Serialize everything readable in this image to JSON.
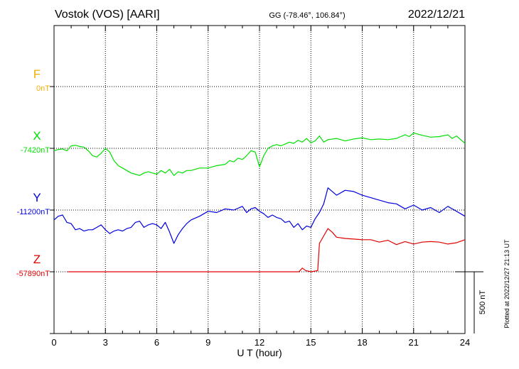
{
  "header": {
    "station": "Vostok (VOS)  [AARI]",
    "coords": "GG (-78.46°, 106.84°)",
    "date": "2022/12/21"
  },
  "side_note": "Plotted at 2022/12/27 21:13 UT",
  "scale_bar_label": "500 nT",
  "chart_data": {
    "type": "line",
    "title": "",
    "xlabel": "U T (hour)",
    "ylabel": "",
    "xlim": [
      0,
      24
    ],
    "x_ticks": [
      "0",
      "3",
      "6",
      "9",
      "12",
      "15",
      "18",
      "21",
      "24"
    ],
    "grid": true,
    "scale_bar_nT": 500,
    "panel_height_nT": 500,
    "series": [
      {
        "name": "F",
        "baseline_label": "0nT",
        "color": "#f2b000",
        "x": [],
        "y": []
      },
      {
        "name": "X",
        "baseline_label": "-7420nT",
        "color": "#00e000",
        "x": [
          0,
          0.25,
          0.5,
          0.75,
          1.0,
          1.25,
          1.5,
          1.75,
          2.0,
          2.25,
          2.5,
          2.75,
          3.0,
          3.25,
          3.5,
          3.75,
          4.0,
          4.25,
          4.5,
          4.75,
          5.0,
          5.25,
          5.5,
          5.75,
          6.0,
          6.25,
          6.5,
          6.75,
          7.0,
          7.25,
          7.5,
          7.75,
          8.0,
          8.5,
          9.0,
          9.5,
          10.0,
          10.25,
          10.5,
          10.75,
          11.0,
          11.25,
          11.5,
          11.75,
          12.0,
          12.25,
          12.5,
          12.75,
          13.0,
          13.25,
          13.5,
          13.75,
          14.0,
          14.25,
          14.5,
          14.75,
          15.0,
          15.25,
          15.5,
          15.75,
          16.0,
          16.5,
          17.0,
          17.5,
          18.0,
          18.5,
          19.0,
          19.5,
          20.0,
          20.25,
          20.5,
          20.75,
          21.0,
          21.5,
          22.0,
          22.5,
          23.0,
          23.25,
          23.5,
          23.75,
          24.0
        ],
        "y": [
          -20,
          -10,
          -5,
          -20,
          20,
          25,
          15,
          10,
          -20,
          -60,
          -70,
          -40,
          0,
          -30,
          -100,
          -140,
          -160,
          -180,
          -200,
          -210,
          -220,
          -200,
          -190,
          -200,
          -210,
          -180,
          -200,
          -170,
          -220,
          -190,
          -200,
          -180,
          -180,
          -160,
          -160,
          -140,
          -130,
          -100,
          -110,
          -80,
          -90,
          -60,
          -20,
          -30,
          -150,
          -60,
          0,
          20,
          30,
          20,
          35,
          50,
          40,
          65,
          50,
          80,
          45,
          60,
          100,
          50,
          70,
          80,
          60,
          75,
          85,
          70,
          75,
          70,
          80,
          95,
          110,
          95,
          125,
          105,
          90,
          95,
          110,
          80,
          100,
          70,
          40
        ]
      },
      {
        "name": "Y",
        "baseline_label": "-11200nT",
        "color": "#0000e0",
        "x": [
          0,
          0.25,
          0.5,
          0.75,
          1.0,
          1.25,
          1.5,
          1.75,
          2.0,
          2.25,
          2.5,
          2.75,
          3.0,
          3.25,
          3.5,
          3.75,
          4.0,
          4.25,
          4.5,
          4.75,
          5.0,
          5.25,
          5.5,
          5.75,
          6.0,
          6.25,
          6.5,
          6.75,
          7.0,
          7.25,
          7.5,
          7.75,
          8.0,
          8.5,
          9.0,
          9.5,
          10.0,
          10.5,
          11.0,
          11.25,
          11.5,
          11.75,
          12.0,
          12.25,
          12.5,
          12.75,
          13.0,
          13.25,
          13.5,
          13.75,
          14.0,
          14.25,
          14.5,
          14.75,
          15.0,
          15.25,
          15.5,
          15.75,
          16.0,
          16.25,
          16.5,
          17.0,
          17.5,
          18.0,
          18.5,
          19.0,
          19.5,
          20.0,
          20.5,
          21.0,
          21.5,
          22.0,
          22.5,
          23.0,
          23.5,
          24.0
        ],
        "y": [
          -80,
          -50,
          -40,
          -100,
          -110,
          -160,
          -150,
          -170,
          -160,
          -160,
          -140,
          -120,
          -160,
          -190,
          -170,
          -160,
          -170,
          -150,
          -140,
          -100,
          -90,
          -140,
          -120,
          -110,
          -120,
          -150,
          -100,
          -180,
          -270,
          -200,
          -150,
          -110,
          -80,
          -50,
          -10,
          -20,
          10,
          0,
          30,
          -20,
          10,
          20,
          -10,
          -30,
          -60,
          -40,
          -60,
          -70,
          -100,
          -90,
          -140,
          -110,
          -160,
          -130,
          -140,
          -70,
          -20,
          50,
          180,
          150,
          120,
          160,
          150,
          120,
          100,
          80,
          60,
          50,
          10,
          40,
          0,
          20,
          -20,
          30,
          -10,
          -50
        ]
      },
      {
        "name": "Z",
        "baseline_label": "-57890nT",
        "color": "#e00000",
        "x": [
          0.8,
          1.5,
          2.0,
          3.0,
          4.5,
          6.0,
          7.5,
          8.5,
          9.5,
          10.5,
          11.5,
          12.5,
          13.5,
          14.3,
          14.5,
          14.7,
          15.0,
          15.4,
          15.5,
          15.75,
          16.0,
          16.25,
          16.5,
          17.0,
          17.5,
          18.0,
          18.5,
          19.0,
          19.5,
          20.0,
          20.5,
          21.0,
          21.5,
          22.0,
          22.5,
          23.0,
          23.5,
          24.0
        ],
        "y": [
          0,
          0,
          0,
          0,
          0,
          0,
          0,
          0,
          0,
          0,
          0,
          0,
          0,
          0,
          30,
          10,
          0,
          10,
          230,
          290,
          350,
          320,
          280,
          270,
          265,
          260,
          260,
          240,
          255,
          220,
          245,
          225,
          240,
          245,
          240,
          225,
          235,
          260
        ]
      }
    ]
  }
}
